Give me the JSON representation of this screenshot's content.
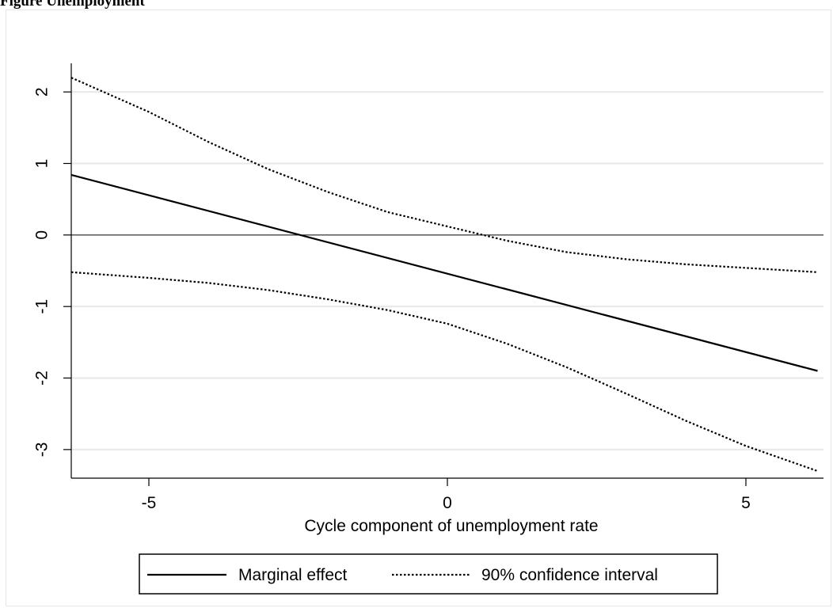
{
  "caption": "Figure  Unemployment",
  "chart_data": {
    "type": "line",
    "title": "",
    "xlabel": "Cycle component of unemployment rate",
    "ylabel": "",
    "xlim": [
      -6.3,
      6.3
    ],
    "ylim": [
      -3.4,
      2.4
    ],
    "xticks": [
      -5,
      0,
      5
    ],
    "yticks": [
      -3,
      -2,
      -1,
      0,
      1,
      2
    ],
    "xtick_labels": [
      "-5",
      "0",
      "5"
    ],
    "ytick_labels": [
      "-3",
      "-2",
      "-1",
      "0",
      "1",
      "2"
    ],
    "grid": "horizontal",
    "zero_line": true,
    "legend_position": "bottom",
    "series": [
      {
        "name": "Marginal effect",
        "style": "solid",
        "color": "#000000",
        "x": [
          -6.3,
          6.2
        ],
        "y": [
          0.84,
          -1.9
        ]
      },
      {
        "name": "90% confidence interval",
        "style": "dotted",
        "color": "#000000",
        "x": [
          -6.3,
          -5,
          -4,
          -3,
          -2,
          -1,
          0,
          0.5,
          1,
          2,
          3,
          4,
          5,
          6.2
        ],
        "y": [
          2.2,
          1.72,
          1.3,
          0.92,
          0.6,
          0.32,
          0.12,
          0.02,
          -0.08,
          -0.24,
          -0.34,
          -0.41,
          -0.46,
          -0.52
        ]
      },
      {
        "name": "",
        "style": "dotted",
        "color": "#000000",
        "x": [
          -6.3,
          -5,
          -4,
          -3,
          -2,
          -1,
          0,
          1,
          2,
          3,
          4,
          5,
          6.2
        ],
        "y": [
          -0.52,
          -0.6,
          -0.67,
          -0.77,
          -0.9,
          -1.05,
          -1.24,
          -1.52,
          -1.85,
          -2.22,
          -2.6,
          -2.95,
          -3.3
        ]
      }
    ],
    "legend": [
      {
        "label": "Marginal effect",
        "style": "solid"
      },
      {
        "label": "90% confidence interval",
        "style": "dotted"
      }
    ]
  }
}
